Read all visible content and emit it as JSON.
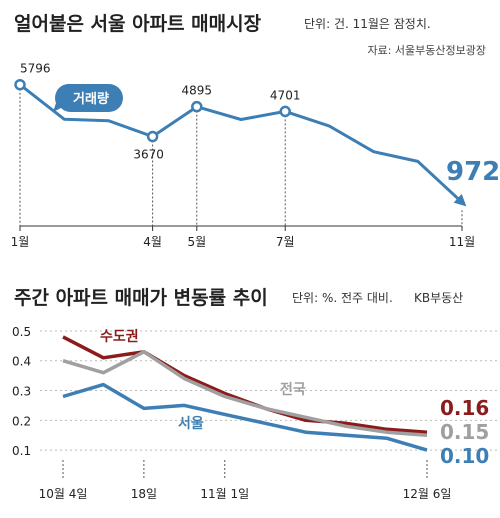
{
  "colors": {
    "line_blue": "#3d7fb5",
    "bubble": "#3d7fb5",
    "seoul": "#3d7fb5",
    "capital": "#8c1b1b",
    "national": "#a0a0a0",
    "grid": "#bbbbbb"
  },
  "top": {
    "title": "얼어붙은 서울 아파트 매매시장",
    "unit": "단위: 건. 11월은 잠정치.",
    "source": "자료: 서울부동산정보광장",
    "bubble_label": "거래량",
    "end_value_label": "972"
  },
  "bottom": {
    "title": "주간 아파트 매매가 변동률 추이",
    "unit": "단위: %. 전주 대비.",
    "source": "KB부동산",
    "series_labels": [
      "수도권",
      "전국",
      "서울"
    ],
    "end_labels": [
      "0.16",
      "0.15",
      "0.10"
    ]
  },
  "chart_data": [
    {
      "type": "line",
      "title": "얼어붙은 서울 아파트 매매시장",
      "subtitle": "단위: 건. 11월은 잠정치.",
      "x": [
        1,
        2,
        3,
        4,
        5,
        6,
        7,
        8,
        9,
        10,
        11
      ],
      "x_tick_labels": [
        "1월",
        "4월",
        "5월",
        "7월",
        "11월"
      ],
      "x_ticks": [
        1,
        4,
        5,
        7,
        11
      ],
      "series": [
        {
          "name": "거래량",
          "values": [
            5796,
            4380,
            4320,
            3670,
            4895,
            4370,
            4701,
            4100,
            3050,
            2650,
            972
          ]
        }
      ],
      "labeled_points": [
        {
          "x": 1,
          "label": "5796"
        },
        {
          "x": 4,
          "label": "3670"
        },
        {
          "x": 5,
          "label": "4895"
        },
        {
          "x": 7,
          "label": "4701"
        },
        {
          "x": 11,
          "label": "972"
        }
      ],
      "ylim": [
        0,
        6400
      ],
      "grid": false
    },
    {
      "type": "line",
      "title": "주간 아파트 매매가 변동률 추이",
      "subtitle": "단위: %. 전주 대비.",
      "x_tick_labels": [
        "10월 4일",
        "18일",
        "11월 1일",
        "12월 6일"
      ],
      "x_ticks": [
        0,
        2,
        4,
        9
      ],
      "x": [
        0,
        1,
        2,
        3,
        4,
        5,
        6,
        7,
        8,
        9
      ],
      "yticks": [
        0.1,
        0.2,
        0.3,
        0.4,
        0.5
      ],
      "ylim": [
        0.05,
        0.52
      ],
      "grid": true,
      "series": [
        {
          "name": "수도권",
          "values": [
            0.48,
            0.41,
            0.43,
            0.35,
            0.29,
            0.24,
            0.2,
            0.19,
            0.17,
            0.16
          ]
        },
        {
          "name": "전국",
          "values": [
            0.4,
            0.36,
            0.43,
            0.34,
            0.28,
            0.24,
            0.21,
            0.18,
            0.16,
            0.15
          ]
        },
        {
          "name": "서울",
          "values": [
            0.28,
            0.32,
            0.24,
            0.25,
            0.22,
            0.19,
            0.16,
            0.15,
            0.14,
            0.1
          ]
        }
      ]
    }
  ]
}
